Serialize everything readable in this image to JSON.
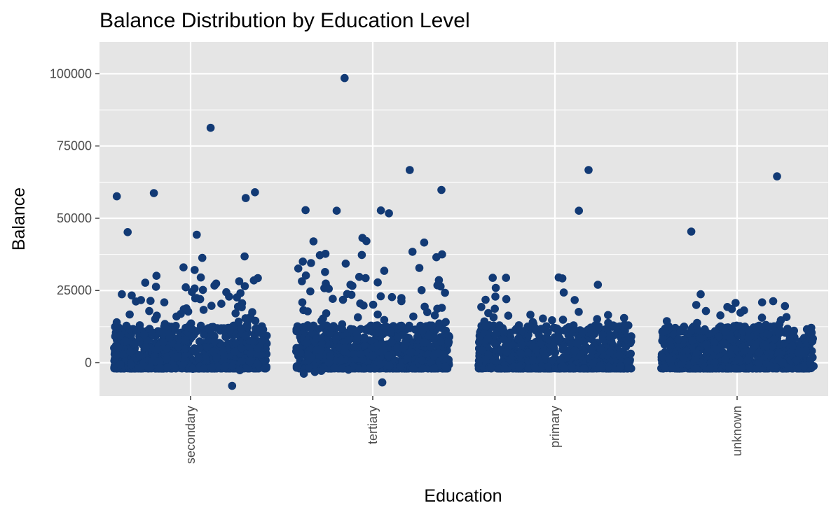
{
  "chart_data": {
    "type": "scatter",
    "title": "Balance Distribution by Education Level",
    "xlabel": "Education",
    "ylabel": "Balance",
    "categories": [
      "secondary",
      "tertiary",
      "primary",
      "unknown"
    ],
    "ylim": [
      -11500,
      111000
    ],
    "y_ticks": [
      0,
      25000,
      50000,
      75000,
      100000
    ],
    "jitter": true,
    "grid": true,
    "legend": "none",
    "colors": {
      "point": "#123a75",
      "panel": "#e5e5e5",
      "grid": "#ffffff"
    },
    "series": [
      {
        "category": "secondary",
        "values": [
          81300,
          58700,
          59000,
          57000,
          57600,
          45200,
          44300,
          36800,
          36300,
          33000,
          32100,
          30100,
          29500,
          29300,
          28500,
          28200,
          27700,
          27400,
          26700,
          26500,
          26300,
          26100,
          25700,
          25200,
          24500,
          24400,
          24100,
          23700,
          23300,
          22900,
          22600,
          22400,
          22300,
          22000,
          21700,
          21400,
          21200,
          20900,
          20600,
          20400,
          19700,
          19400,
          19200,
          18800,
          18500,
          18300,
          17900,
          17700,
          17500,
          17100,
          16900,
          16700,
          16300,
          16000,
          15800,
          15400,
          15100,
          14900,
          14500,
          14200,
          14000,
          13600,
          13400,
          13100,
          12800,
          12500,
          12100,
          11800,
          11500,
          11200,
          -8000,
          -2600,
          -2100
        ]
      },
      {
        "category": "tertiary",
        "values": [
          98500,
          66700,
          59800,
          52800,
          52700,
          52600,
          51700,
          43200,
          42100,
          42000,
          41600,
          38400,
          37700,
          37500,
          37300,
          37200,
          36500,
          35000,
          34500,
          34300,
          32800,
          32600,
          31800,
          31400,
          30200,
          29700,
          29300,
          28600,
          28200,
          27800,
          27400,
          27000,
          26800,
          26600,
          26400,
          26100,
          25800,
          25600,
          25100,
          24700,
          24200,
          23800,
          23500,
          23000,
          22700,
          22400,
          22100,
          21800,
          21300,
          20900,
          20500,
          20100,
          19800,
          19400,
          19000,
          18700,
          18200,
          17800,
          17500,
          17100,
          16700,
          16400,
          16000,
          15700,
          15300,
          14800,
          14500,
          14100,
          13600,
          13300,
          12800,
          12400,
          12000,
          -6800,
          -3800,
          -3200,
          -2800,
          -2400
        ]
      },
      {
        "category": "primary",
        "values": [
          66700,
          52600,
          29500,
          29400,
          29200,
          29400,
          27000,
          25900,
          24300,
          22900,
          22000,
          21800,
          21700,
          19300,
          18700,
          17600,
          17200,
          16600,
          16500,
          16300,
          15700,
          15500,
          15300,
          15100,
          14900,
          14700,
          14300,
          14100,
          13800,
          13500,
          13200,
          12900,
          12600,
          12300,
          12000,
          11700,
          11400,
          11100,
          10800,
          -1400,
          -1200
        ]
      },
      {
        "category": "unknown",
        "values": [
          64500,
          45400,
          23700,
          21300,
          20900,
          20700,
          20000,
          19600,
          19300,
          18600,
          18100,
          17900,
          17300,
          16400,
          15800,
          15600,
          14700,
          14400,
          13800,
          13400,
          13100,
          12800,
          12500,
          12200,
          11900,
          11600,
          11300,
          11000,
          10700,
          -1300,
          -1000
        ]
      }
    ],
    "dense_band": {
      "min": -2000,
      "max": 13000
    }
  }
}
